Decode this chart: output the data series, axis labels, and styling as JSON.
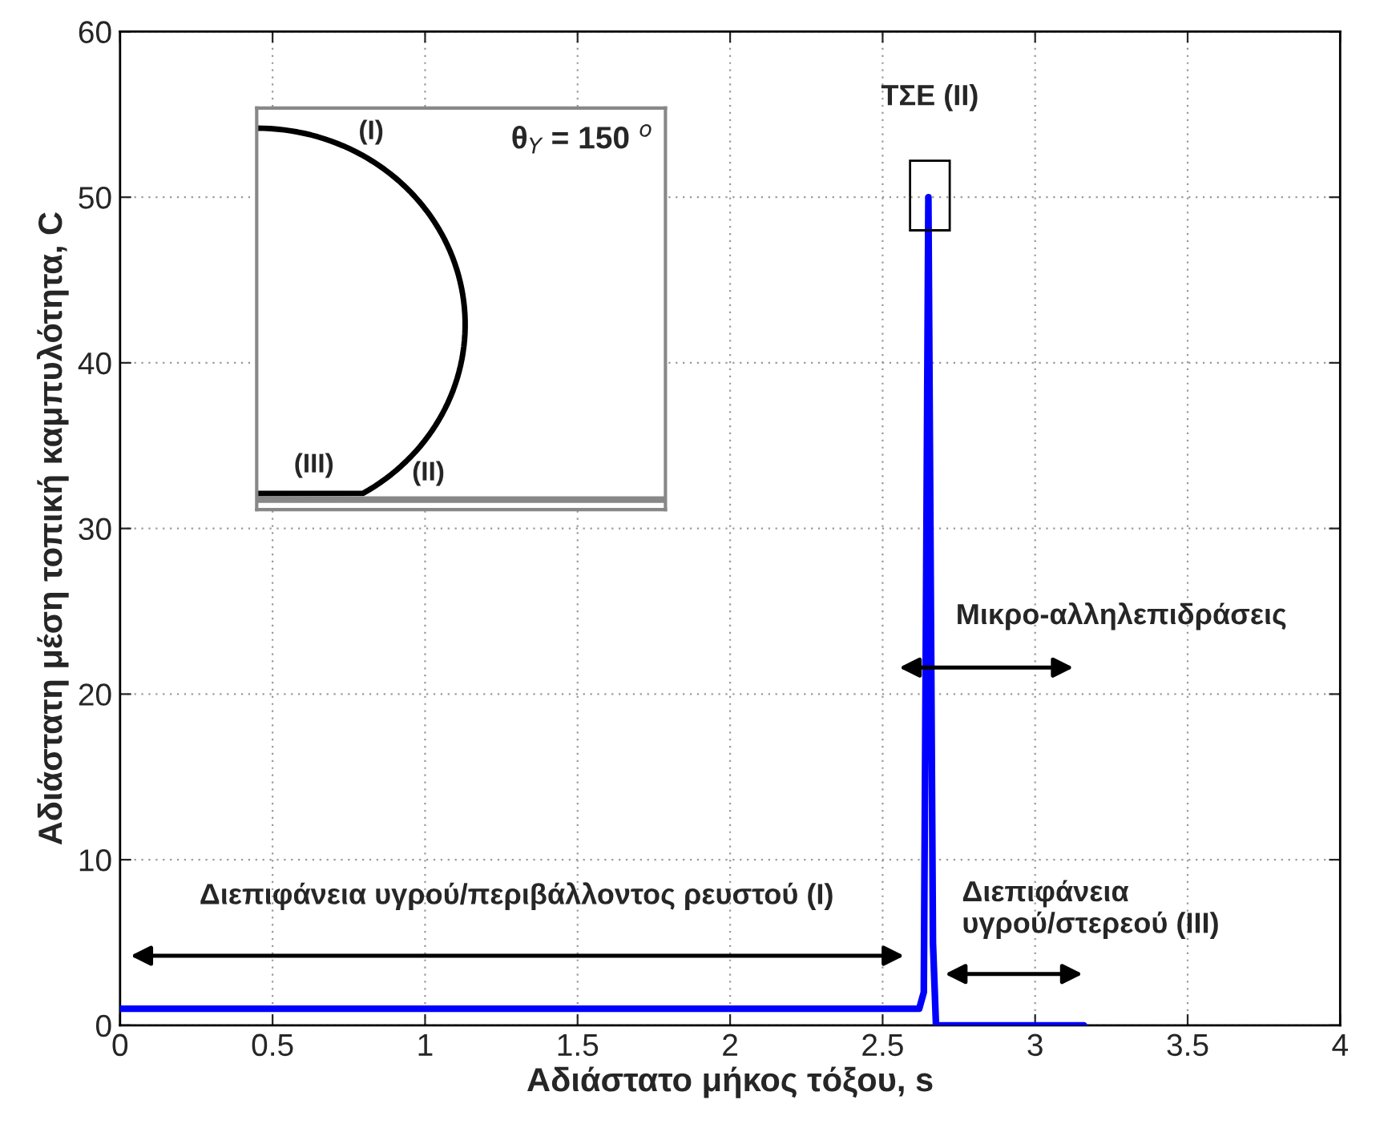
{
  "chart_data": {
    "type": "line",
    "xlabel": "Αδιάστατο μήκος τόξου, s",
    "ylabel": "Αδιάστατη μέση τοπική καμπυλότητα, C",
    "series": [
      {
        "color": "#0000ff",
        "x": [
          0,
          2.62,
          2.635,
          2.65,
          2.665,
          2.675,
          3.16
        ],
        "values": [
          1,
          1,
          2,
          50,
          5,
          0,
          0
        ]
      }
    ],
    "xlim": [
      0,
      4
    ],
    "ylim": [
      0,
      60
    ],
    "xticks": [
      0,
      0.5,
      1,
      1.5,
      2,
      2.5,
      3,
      3.5,
      4
    ],
    "yticks": [
      0,
      10,
      20,
      30,
      40,
      50,
      60
    ],
    "grid": true,
    "annotations": [
      "ΤΣΕ (II)",
      "Μικρο-αλληλεπιδράσεις",
      "Διεπιφάνεια υγρού/περιβάλλοντος ρευστού (I)",
      "Διεπιφάνεια\nυγρού/στερεού (III)",
      "(I)",
      "(II)",
      "(III)",
      "θ$_{Y}$ = 150 $^{o}$"
    ]
  }
}
